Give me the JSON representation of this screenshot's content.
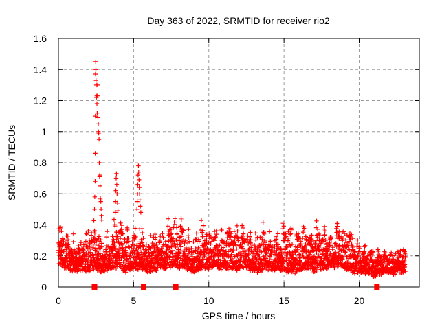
{
  "chart_data": {
    "type": "scatter",
    "title": "Day 363 of 2022, SRMTID for receiver rio2",
    "xlabel": "GPS time / hours",
    "ylabel": "SRMTID / TECUs",
    "xlim": [
      0,
      24
    ],
    "ylim": [
      0,
      1.6
    ],
    "xticks": [
      0,
      5,
      10,
      15,
      20
    ],
    "xtick_labels": [
      "0",
      "5",
      "10",
      "15",
      "20"
    ],
    "yticks": [
      0,
      0.2,
      0.4,
      0.6,
      0.8,
      1,
      1.2,
      1.4,
      1.6
    ],
    "ytick_labels": [
      "0",
      "0.2",
      "0.4",
      "0.6",
      "0.8",
      "1",
      "1.2",
      "1.4",
      "1.6"
    ],
    "grid": {
      "show": true,
      "style": "dashed",
      "color": "#9b9b9b"
    },
    "axis_color": "#000000",
    "marker": {
      "glyph": "plus",
      "color": "#ff0000",
      "size": 7
    },
    "series": [
      {
        "name": "SRMTID",
        "style": "points"
      }
    ],
    "sampling": {
      "t_start": 0.0,
      "t_end": 23.08,
      "dt_hours": 0.008,
      "seed": 987654321
    },
    "envelope_keyframes": [
      [
        0.0,
        0.14,
        0.46
      ],
      [
        0.5,
        0.1,
        0.4
      ],
      [
        1.0,
        0.08,
        0.42
      ],
      [
        1.5,
        0.1,
        0.38
      ],
      [
        2.0,
        0.08,
        0.44
      ],
      [
        2.5,
        0.1,
        0.45
      ],
      [
        3.0,
        0.08,
        0.4
      ],
      [
        3.5,
        0.1,
        0.52
      ],
      [
        4.0,
        0.1,
        0.5
      ],
      [
        4.5,
        0.08,
        0.44
      ],
      [
        5.0,
        0.1,
        0.52
      ],
      [
        5.5,
        0.1,
        0.48
      ],
      [
        6.0,
        0.08,
        0.4
      ],
      [
        6.5,
        0.1,
        0.44
      ],
      [
        7.0,
        0.1,
        0.5
      ],
      [
        7.4,
        0.1,
        0.56
      ],
      [
        8.0,
        0.1,
        0.5
      ],
      [
        8.5,
        0.1,
        0.5
      ],
      [
        9.0,
        0.08,
        0.42
      ],
      [
        9.5,
        0.1,
        0.48
      ],
      [
        10.0,
        0.1,
        0.46
      ],
      [
        10.5,
        0.1,
        0.5
      ],
      [
        11.0,
        0.1,
        0.44
      ],
      [
        11.5,
        0.1,
        0.48
      ],
      [
        12.0,
        0.1,
        0.44
      ],
      [
        12.5,
        0.1,
        0.52
      ],
      [
        13.0,
        0.08,
        0.44
      ],
      [
        13.5,
        0.08,
        0.42
      ],
      [
        14.0,
        0.1,
        0.46
      ],
      [
        14.5,
        0.1,
        0.44
      ],
      [
        15.0,
        0.08,
        0.5
      ],
      [
        15.5,
        0.08,
        0.4
      ],
      [
        16.0,
        0.08,
        0.44
      ],
      [
        16.5,
        0.1,
        0.52
      ],
      [
        17.0,
        0.08,
        0.45
      ],
      [
        17.5,
        0.1,
        0.48
      ],
      [
        18.0,
        0.1,
        0.46
      ],
      [
        18.5,
        0.12,
        0.52
      ],
      [
        19.0,
        0.1,
        0.44
      ],
      [
        19.5,
        0.08,
        0.4
      ],
      [
        20.0,
        0.08,
        0.36
      ],
      [
        20.5,
        0.08,
        0.32
      ],
      [
        21.0,
        0.06,
        0.3
      ],
      [
        21.5,
        0.08,
        0.28
      ],
      [
        22.0,
        0.08,
        0.32
      ],
      [
        22.5,
        0.08,
        0.28
      ],
      [
        23.1,
        0.1,
        0.27
      ]
    ],
    "burst_texture": {
      "periods_hours": [
        0.45,
        0.17,
        1.9
      ],
      "phases": [
        0,
        2.1,
        0.7
      ],
      "weights": [
        0.4,
        0.3,
        0.3
      ]
    },
    "spike_points": [
      [
        2.4,
        0.5
      ],
      [
        2.42,
        0.58
      ],
      [
        2.44,
        0.68
      ],
      [
        2.45,
        0.86
      ],
      [
        2.46,
        1.1
      ],
      [
        2.47,
        1.37
      ],
      [
        2.48,
        1.45
      ],
      [
        2.49,
        1.4
      ],
      [
        2.5,
        1.33
      ],
      [
        2.52,
        1.3
      ],
      [
        2.53,
        1.22
      ],
      [
        2.55,
        1.23
      ],
      [
        2.56,
        1.18
      ],
      [
        2.58,
        1.12
      ],
      [
        2.6,
        1.3
      ],
      [
        2.61,
        1.23
      ],
      [
        2.63,
        1.09
      ],
      [
        2.65,
        1.05
      ],
      [
        2.66,
        1.0
      ],
      [
        2.68,
        0.99
      ],
      [
        2.7,
        0.95
      ],
      [
        2.72,
        0.8
      ],
      [
        2.74,
        0.71
      ],
      [
        2.75,
        0.72
      ],
      [
        2.77,
        0.65
      ],
      [
        2.79,
        0.57
      ],
      [
        2.8,
        0.56
      ],
      [
        2.82,
        0.55
      ],
      [
        2.84,
        0.5
      ],
      [
        2.86,
        0.46
      ],
      [
        2.88,
        0.43
      ],
      [
        3.78,
        0.48
      ],
      [
        3.8,
        0.55
      ],
      [
        3.82,
        0.62
      ],
      [
        3.84,
        0.7
      ],
      [
        3.86,
        0.73
      ],
      [
        3.88,
        0.66
      ],
      [
        3.9,
        0.6
      ],
      [
        3.93,
        0.54
      ],
      [
        3.96,
        0.49
      ],
      [
        5.22,
        0.5
      ],
      [
        5.24,
        0.55
      ],
      [
        5.26,
        0.6
      ],
      [
        5.28,
        0.66
      ],
      [
        5.3,
        0.72
      ],
      [
        5.32,
        0.78
      ],
      [
        5.34,
        0.74
      ],
      [
        5.36,
        0.69
      ],
      [
        5.38,
        0.64
      ],
      [
        5.4,
        0.6
      ],
      [
        5.42,
        0.56
      ],
      [
        5.45,
        0.52
      ],
      [
        5.48,
        0.48
      ]
    ],
    "baseline_square_markers": {
      "hours": [
        2.4,
        5.67,
        7.8,
        21.18
      ],
      "value": 0,
      "color": "#ff0000",
      "shape": "filled-square"
    }
  }
}
